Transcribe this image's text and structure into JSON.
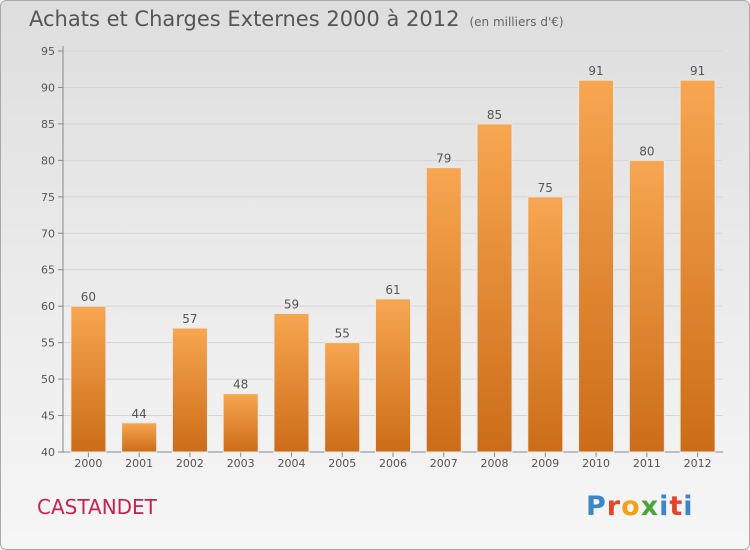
{
  "header": {
    "title": "Achats et Charges Externes 2000 à 2012",
    "unit": "(en milliers d'€)"
  },
  "footer": {
    "commune": "CASTANDET",
    "brand_letters": [
      "P",
      "r",
      "o",
      "x",
      "i",
      "t",
      "i"
    ],
    "brand_colors": [
      "#3a86c8",
      "#e2452c",
      "#f2a218",
      "#4aa63c",
      "#3a86c8",
      "#e2452c",
      "#3a86c8"
    ]
  },
  "colors": {
    "bar_top": "#f7a651",
    "bar_bottom": "#cc6c18",
    "axis": "#888888",
    "grid": "#d4d4d4",
    "text": "#555555"
  },
  "chart_data": {
    "type": "bar",
    "categories": [
      "2000",
      "2001",
      "2002",
      "2003",
      "2004",
      "2005",
      "2006",
      "2007",
      "2008",
      "2009",
      "2010",
      "2011",
      "2012"
    ],
    "values": [
      60,
      44,
      57,
      48,
      59,
      55,
      61,
      79,
      85,
      75,
      91,
      80,
      91
    ],
    "data_labels": [
      "60",
      "44",
      "57",
      "48",
      "59",
      "55",
      "61",
      "79",
      "85",
      "75",
      "91",
      "80",
      "91"
    ],
    "yticks": [
      "40",
      "45",
      "50",
      "55",
      "60",
      "65",
      "70",
      "75",
      "80",
      "85",
      "90",
      "95"
    ],
    "ylim": [
      40,
      95
    ],
    "grid": true
  }
}
